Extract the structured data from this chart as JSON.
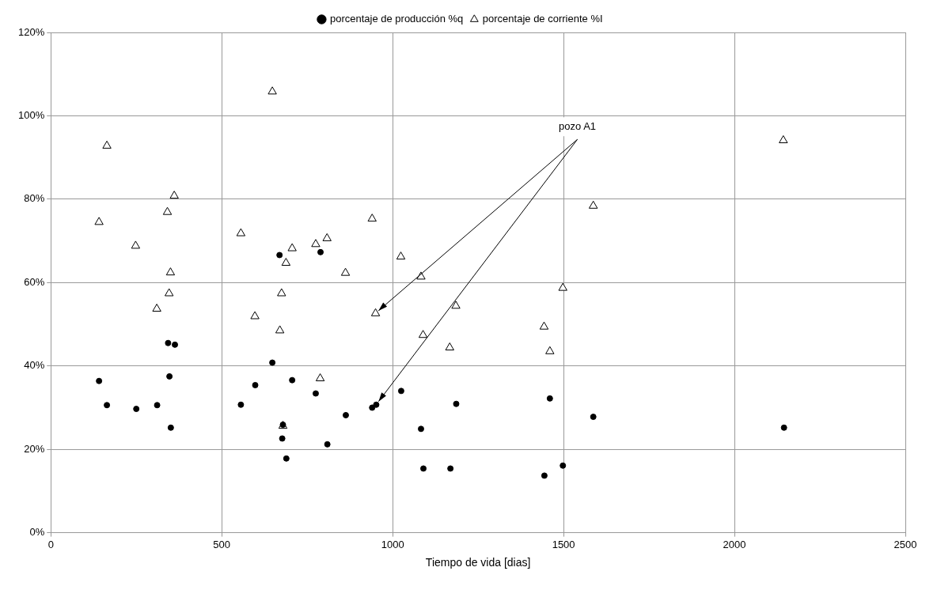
{
  "chart_data": {
    "type": "scatter",
    "xlabel": "Tiempo de vida [dias]",
    "xlim": [
      0,
      2500
    ],
    "xticks": [
      0,
      500,
      1000,
      1500,
      2000,
      2500
    ],
    "ylim": [
      0,
      120
    ],
    "yticks": [
      {
        "value": 0,
        "label": "0%"
      },
      {
        "value": 20,
        "label": "20%"
      },
      {
        "value": 40,
        "label": "40%"
      },
      {
        "value": 60,
        "label": "60%"
      },
      {
        "value": 80,
        "label": "80%"
      },
      {
        "value": 100,
        "label": "100%"
      },
      {
        "value": 120,
        "label": "120%"
      }
    ],
    "grid": true,
    "legend": "top",
    "series": [
      {
        "name": "porcentaje de producción %q",
        "color": "#000000",
        "marker": "circle",
        "x": [
          669,
          789,
          343,
          363,
          347,
          141,
          164,
          250,
          311,
          351,
          648,
          706,
          598,
          775,
          556,
          679,
          677,
          809,
          689,
          1025,
          1186,
          1460,
          863,
          940,
          952,
          1587,
          1083,
          1090,
          1169,
          1444,
          1498,
          2145
        ],
        "values": [
          66.6,
          67.3,
          45.5,
          45.1,
          37.5,
          36.4,
          30.6,
          29.7,
          30.6,
          25.2,
          40.8,
          36.6,
          35.4,
          33.4,
          30.7,
          25.9,
          22.6,
          21.2,
          17.8,
          34.0,
          30.9,
          32.2,
          28.2,
          30.0,
          30.7,
          27.8,
          24.9,
          15.4,
          15.4,
          13.7,
          16.1,
          25.2
        ]
      },
      {
        "name": "porcentaje de corriente %I",
        "color": "#000000",
        "marker": "triangle",
        "x": [
          648,
          164,
          361,
          341,
          141,
          248,
          556,
          706,
          775,
          808,
          688,
          350,
          346,
          310,
          675,
          597,
          670,
          788,
          679,
          940,
          1587,
          1024,
          862,
          1083,
          950,
          1498,
          1185,
          1089,
          1167,
          1443,
          1460,
          2143
        ],
        "values": [
          105.8,
          92.8,
          80.8,
          76.9,
          74.5,
          68.8,
          71.8,
          68.2,
          69.2,
          70.6,
          64.7,
          62.4,
          57.4,
          53.7,
          57.4,
          51.9,
          48.5,
          37.0,
          25.6,
          75.3,
          78.4,
          66.2,
          62.3,
          61.4,
          52.6,
          58.7,
          54.4,
          47.4,
          44.4,
          49.4,
          43.5,
          94.1
        ]
      }
    ],
    "annotations": [
      {
        "text": "pozo A1",
        "x": 950,
        "y": 52.6
      }
    ]
  }
}
